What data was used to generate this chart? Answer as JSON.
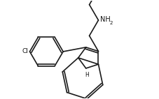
{
  "bg_color": "#ffffff",
  "line_color": "#1a1a1a",
  "lw": 1.2,
  "text_color": "#111111",
  "figsize": [
    2.27,
    1.42
  ],
  "dpi": 100,
  "Cl_label": "Cl",
  "H_label": "H",
  "NH2_main": "NH",
  "NH2_sub": "2"
}
